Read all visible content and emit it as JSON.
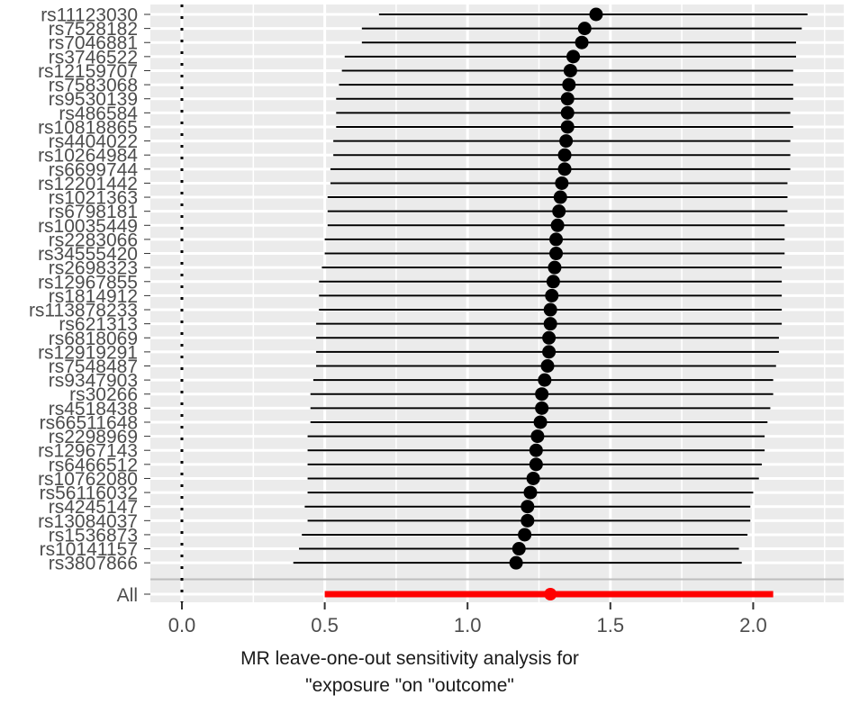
{
  "chart_data": {
    "type": "forest",
    "title": "",
    "xlabel": "MR leave-one-out sensitivity analysis for\n\"exposure \"on \"outcome\"",
    "xlabel_lines": [
      "MR leave-one-out sensitivity analysis for",
      "\"exposure \"on \"outcome\""
    ],
    "ylabel": "",
    "xlim": [
      -0.11,
      2.32
    ],
    "x_ticks": [
      0.0,
      0.5,
      1.0,
      1.5,
      2.0
    ],
    "x_tick_labels": [
      "0.0",
      "0.5",
      "1.0",
      "1.5",
      "2.0"
    ],
    "reference_line": {
      "x": 0,
      "style": "dotted",
      "color": "#000000"
    },
    "grid": true,
    "point_color": "#000000",
    "summary_color": "#ff0000",
    "rows": [
      {
        "snp": "rs11123030",
        "b": 1.45,
        "lo": 0.69,
        "hi": 2.19
      },
      {
        "snp": "rs7528182",
        "b": 1.41,
        "lo": 0.63,
        "hi": 2.17
      },
      {
        "snp": "rs7046881",
        "b": 1.4,
        "lo": 0.63,
        "hi": 2.15
      },
      {
        "snp": "rs3746522",
        "b": 1.37,
        "lo": 0.57,
        "hi": 2.15
      },
      {
        "snp": "rs12159707",
        "b": 1.36,
        "lo": 0.56,
        "hi": 2.14
      },
      {
        "snp": "rs7583068",
        "b": 1.355,
        "lo": 0.55,
        "hi": 2.14
      },
      {
        "snp": "rs9530139",
        "b": 1.35,
        "lo": 0.54,
        "hi": 2.14
      },
      {
        "snp": "rs486584",
        "b": 1.35,
        "lo": 0.54,
        "hi": 2.13
      },
      {
        "snp": "rs10818865",
        "b": 1.35,
        "lo": 0.54,
        "hi": 2.14
      },
      {
        "snp": "rs4404022",
        "b": 1.345,
        "lo": 0.53,
        "hi": 2.13
      },
      {
        "snp": "rs10264984",
        "b": 1.34,
        "lo": 0.53,
        "hi": 2.13
      },
      {
        "snp": "rs6699744",
        "b": 1.34,
        "lo": 0.52,
        "hi": 2.13
      },
      {
        "snp": "rs12201442",
        "b": 1.33,
        "lo": 0.52,
        "hi": 2.12
      },
      {
        "snp": "rs1021363",
        "b": 1.325,
        "lo": 0.51,
        "hi": 2.12
      },
      {
        "snp": "rs6798181",
        "b": 1.32,
        "lo": 0.51,
        "hi": 2.12
      },
      {
        "snp": "rs10035449",
        "b": 1.315,
        "lo": 0.51,
        "hi": 2.11
      },
      {
        "snp": "rs2283066",
        "b": 1.31,
        "lo": 0.5,
        "hi": 2.11
      },
      {
        "snp": "rs34555420",
        "b": 1.31,
        "lo": 0.5,
        "hi": 2.11
      },
      {
        "snp": "rs2698323",
        "b": 1.305,
        "lo": 0.49,
        "hi": 2.1
      },
      {
        "snp": "rs12967855",
        "b": 1.3,
        "lo": 0.48,
        "hi": 2.1
      },
      {
        "snp": "rs1814912",
        "b": 1.295,
        "lo": 0.48,
        "hi": 2.1
      },
      {
        "snp": "rs113878233",
        "b": 1.29,
        "lo": 0.48,
        "hi": 2.1
      },
      {
        "snp": "rs621313",
        "b": 1.29,
        "lo": 0.47,
        "hi": 2.1
      },
      {
        "snp": "rs6818069",
        "b": 1.285,
        "lo": 0.47,
        "hi": 2.09
      },
      {
        "snp": "rs12919291",
        "b": 1.285,
        "lo": 0.47,
        "hi": 2.09
      },
      {
        "snp": "rs7548487",
        "b": 1.28,
        "lo": 0.47,
        "hi": 2.08
      },
      {
        "snp": "rs9347903",
        "b": 1.27,
        "lo": 0.46,
        "hi": 2.07
      },
      {
        "snp": "rs30266",
        "b": 1.26,
        "lo": 0.45,
        "hi": 2.07
      },
      {
        "snp": "rs4518438",
        "b": 1.26,
        "lo": 0.45,
        "hi": 2.06
      },
      {
        "snp": "rs66511648",
        "b": 1.255,
        "lo": 0.45,
        "hi": 2.05
      },
      {
        "snp": "rs2298969",
        "b": 1.245,
        "lo": 0.44,
        "hi": 2.04
      },
      {
        "snp": "rs12967143",
        "b": 1.24,
        "lo": 0.44,
        "hi": 2.04
      },
      {
        "snp": "rs6466512",
        "b": 1.24,
        "lo": 0.44,
        "hi": 2.03
      },
      {
        "snp": "rs10762080",
        "b": 1.23,
        "lo": 0.44,
        "hi": 2.02
      },
      {
        "snp": "rs56116032",
        "b": 1.22,
        "lo": 0.44,
        "hi": 2.0
      },
      {
        "snp": "rs4245147",
        "b": 1.21,
        "lo": 0.43,
        "hi": 1.99
      },
      {
        "snp": "rs13084037",
        "b": 1.21,
        "lo": 0.44,
        "hi": 1.99
      },
      {
        "snp": "rs1536873",
        "b": 1.2,
        "lo": 0.42,
        "hi": 1.98
      },
      {
        "snp": "rs10141157",
        "b": 1.18,
        "lo": 0.41,
        "hi": 1.95
      },
      {
        "snp": "rs3807866",
        "b": 1.17,
        "lo": 0.39,
        "hi": 1.96
      }
    ],
    "summary": {
      "snp": "All",
      "b": 1.29,
      "lo": 0.5,
      "hi": 2.07
    }
  }
}
